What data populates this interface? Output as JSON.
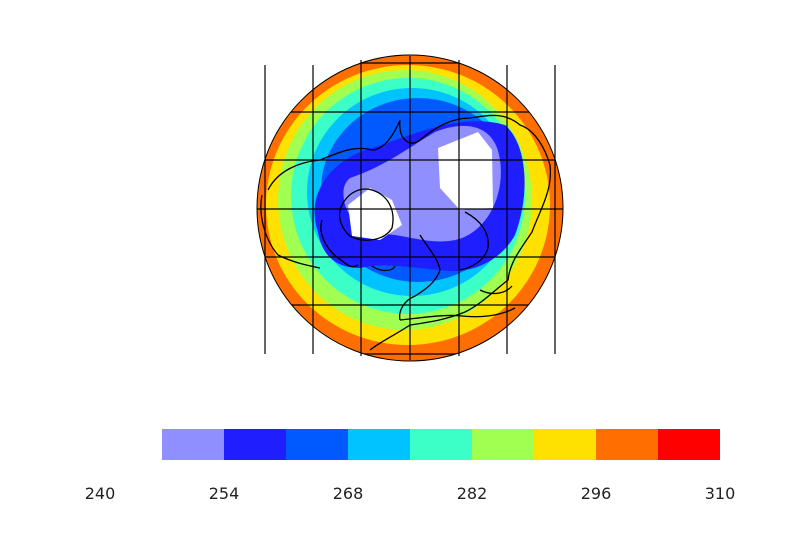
{
  "legend": {
    "tick_labels": [
      "240",
      "254",
      "268",
      "282",
      "296",
      "310"
    ],
    "bands": [
      {
        "color": "#8f8fff"
      },
      {
        "color": "#1e1eff"
      },
      {
        "color": "#005aff"
      },
      {
        "color": "#00c3ff"
      },
      {
        "color": "#3cffc8"
      },
      {
        "color": "#a0ff50"
      },
      {
        "color": "#ffe100"
      },
      {
        "color": "#ff6e00"
      },
      {
        "color": "#ff0000"
      }
    ],
    "out_of_range_color": "#ffffff"
  },
  "map": {
    "projection": "polar-stereographic-north",
    "field": "temperature",
    "land_outline_color": "#000000",
    "graticule_color": "#000000",
    "max_value_color": "#ff6e00",
    "min_value_color": "#ffffff"
  }
}
